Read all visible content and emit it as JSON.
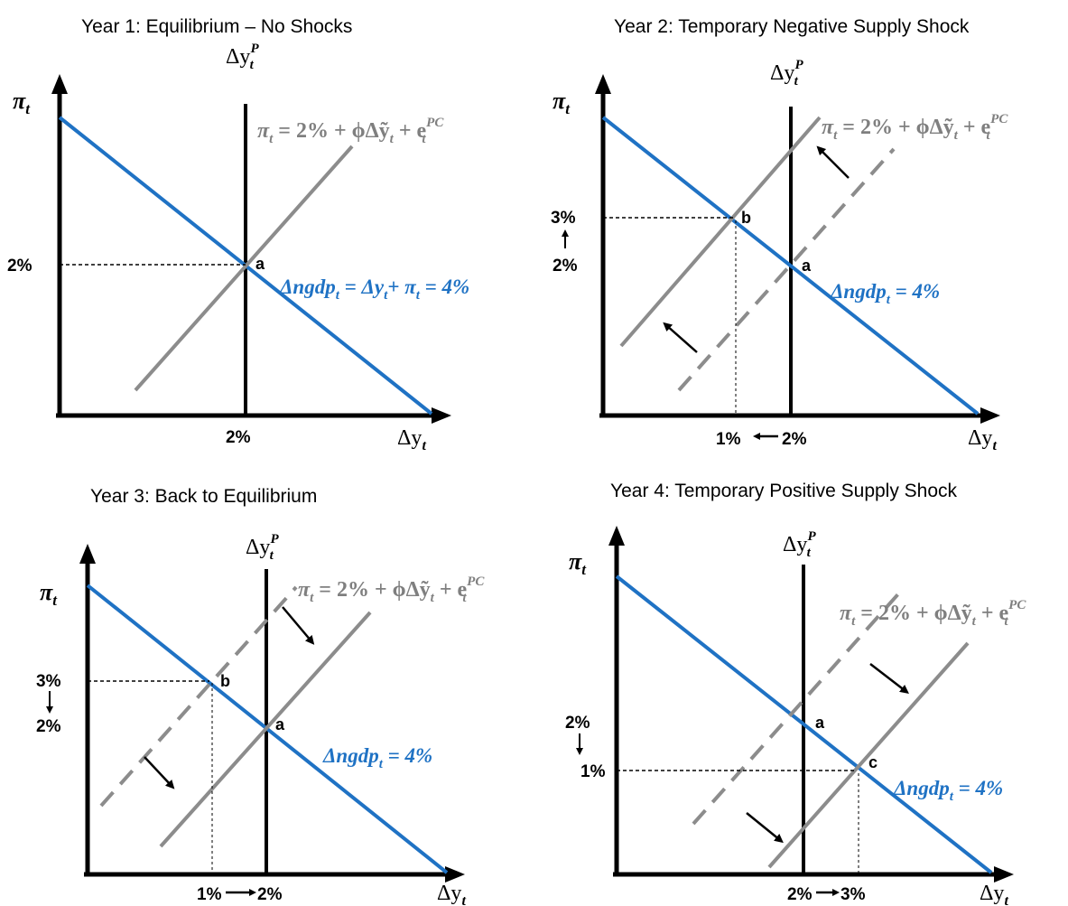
{
  "panels": [
    {
      "title": "Year 1: Equilibrium – No Shocks",
      "pi_label": "π",
      "pi_sub": "t",
      "potential_label": "Δy",
      "potential_sup": "P",
      "potential_sub": "t",
      "x_axis_label": "Δy",
      "x_axis_sub": "t",
      "pc_eq_lhs": "π",
      "pc_eq_text": " = 2% + ϕΔỹ",
      "pc_eq_tail": " + e",
      "pc_eq_sup": "PC",
      "ad_eq": "Δngdp",
      "ad_eq_rest": " = Δy",
      "ad_eq_rest2": "+ π",
      "ad_eq_end": " = 4%",
      "y_ticks": [
        "2%"
      ],
      "x_ticks": [
        "2%"
      ],
      "points": [
        "a"
      ]
    },
    {
      "title": "Year 2: Temporary Negative Supply Shock",
      "pi_label": "π",
      "pi_sub": "t",
      "potential_label": "Δy",
      "potential_sup": "P",
      "potential_sub": "t",
      "x_axis_label": "Δy",
      "x_axis_sub": "t",
      "pc_eq_lhs": "π",
      "pc_eq_text": " = 2% + ϕΔỹ",
      "pc_eq_tail": " + e",
      "pc_eq_sup": "PC",
      "ad_eq": "Δngdp",
      "ad_eq_end": " = 4%",
      "y_ticks": [
        "3%",
        "2%"
      ],
      "x_ticks": [
        "1%",
        "2%"
      ],
      "points": [
        "b",
        "a"
      ]
    },
    {
      "title": "Year 3: Back to Equilibrium",
      "pi_label": "π",
      "pi_sub": "t",
      "potential_label": "Δy",
      "potential_sup": "P",
      "potential_sub": "t",
      "x_axis_label": "Δy",
      "x_axis_sub": "t",
      "pc_eq_lhs": "π",
      "pc_eq_text": " = 2% + ϕΔỹ",
      "pc_eq_tail": " + e",
      "pc_eq_sup": "PC",
      "ad_eq": "Δngdp",
      "ad_eq_end": " = 4%",
      "y_ticks": [
        "3%",
        "2%"
      ],
      "x_ticks": [
        "1%",
        "2%"
      ],
      "points": [
        "b",
        "a"
      ]
    },
    {
      "title": "Year 4: Temporary Positive Supply Shock",
      "pi_label": "π",
      "pi_sub": "t",
      "potential_label": "Δy",
      "potential_sup": "P",
      "potential_sub": "t",
      "x_axis_label": "Δy",
      "x_axis_sub": "t",
      "pc_eq_lhs": "π",
      "pc_eq_text": " = 2% + ϕΔỹ",
      "pc_eq_tail": " + e",
      "pc_eq_sup": "PC",
      "ad_eq": "Δngdp",
      "ad_eq_end": " = 4%",
      "y_ticks": [
        "2%",
        "1%"
      ],
      "x_ticks": [
        "2%",
        "3%"
      ],
      "points": [
        "a",
        "c"
      ]
    }
  ],
  "colors": {
    "ad_line": "#1f72c4",
    "pc_line": "#8c8c8c",
    "axis": "#000000"
  }
}
